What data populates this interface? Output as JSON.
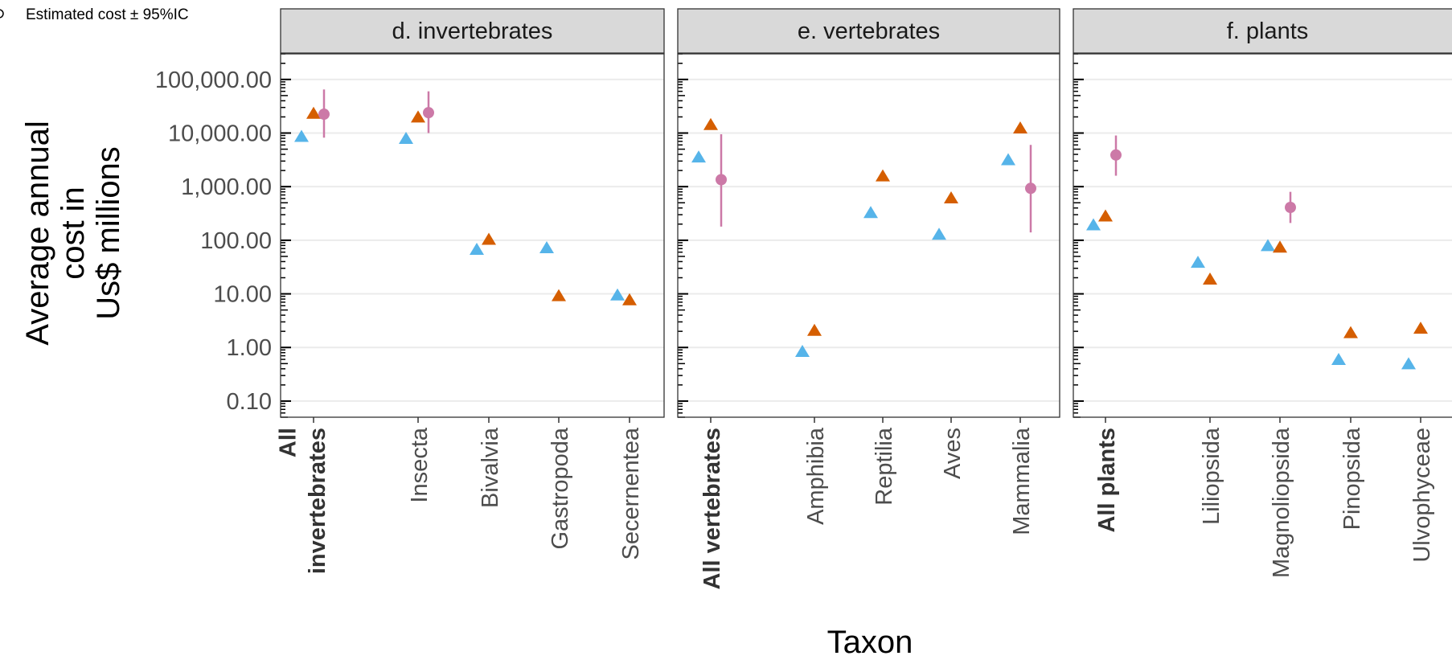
{
  "legend": {
    "label": "Estimated cost ± 95%IC"
  },
  "chart_data": {
    "type": "scatter",
    "ylabel_lines": [
      "Average annual",
      "cost in",
      "Us$ millions"
    ],
    "xlabel": "Taxon",
    "y_scale": "log10",
    "ylim": [
      0.05,
      300000
    ],
    "yticks": [
      0.1,
      1,
      10,
      100,
      1000,
      10000,
      100000
    ],
    "ytick_labels": [
      "0.10",
      "1.00",
      "10.00",
      "100.00",
      "1,000.00",
      "10,000.00",
      "100,000.00"
    ],
    "colors": {
      "triangle_blue": "#56B4E9",
      "triangle_orange": "#D55E00",
      "estimate": "#CC79A7"
    },
    "panels": [
      {
        "title": "d. invertebrates",
        "categories": [
          {
            "label_lines": [
              "All",
              "invertebrates"
            ],
            "bold": true,
            "blue": 8700,
            "orange": 23500,
            "estimate": {
              "value": 22500,
              "lower": 8200,
              "upper": 65000
            }
          },
          {
            "label_lines": [
              "Insecta"
            ],
            "bold": false,
            "blue": 8000,
            "orange": 20000,
            "estimate": {
              "value": 24000,
              "lower": 10000,
              "upper": 60000
            }
          },
          {
            "label_lines": [
              "Bivalvia"
            ],
            "bold": false,
            "blue": 68,
            "orange": 105
          },
          {
            "label_lines": [
              "Gastropoda"
            ],
            "bold": false,
            "blue": 73,
            "orange": 9.3
          },
          {
            "label_lines": [
              "Secernentea"
            ],
            "bold": false,
            "blue": 9.6,
            "orange": 7.8
          }
        ]
      },
      {
        "title": "e. vertebrates",
        "categories": [
          {
            "label_lines": [
              "All vertebrates"
            ],
            "bold": true,
            "blue": 3600,
            "orange": 14500,
            "estimate": {
              "value": 1350,
              "lower": 180,
              "upper": 9500
            }
          },
          {
            "label_lines": [
              "Amphibia"
            ],
            "bold": false,
            "blue": 0.85,
            "orange": 2.1
          },
          {
            "label_lines": [
              "Reptilia"
            ],
            "bold": false,
            "blue": 330,
            "orange": 1600
          },
          {
            "label_lines": [
              "Aves"
            ],
            "bold": false,
            "blue": 130,
            "orange": 620
          },
          {
            "label_lines": [
              "Mammalia"
            ],
            "bold": false,
            "blue": 3200,
            "orange": 12500,
            "estimate": {
              "value": 930,
              "lower": 140,
              "upper": 6000
            }
          }
        ]
      },
      {
        "title": "f. plants",
        "categories": [
          {
            "label_lines": [
              "All plants"
            ],
            "bold": true,
            "blue": 195,
            "orange": 285,
            "estimate": {
              "value": 3900,
              "lower": 1600,
              "upper": 9000
            }
          },
          {
            "label_lines": [
              "Liliopsida"
            ],
            "bold": false,
            "blue": 39,
            "orange": 19
          },
          {
            "label_lines": [
              "Magnoliopsida"
            ],
            "bold": false,
            "blue": 80,
            "orange": 75,
            "estimate": {
              "value": 410,
              "lower": 210,
              "upper": 800
            }
          },
          {
            "label_lines": [
              "Pinopsida"
            ],
            "bold": false,
            "blue": 0.6,
            "orange": 1.9
          },
          {
            "label_lines": [
              "Ulvophyceae"
            ],
            "bold": false,
            "blue": 0.5,
            "orange": 2.3
          }
        ]
      }
    ]
  }
}
